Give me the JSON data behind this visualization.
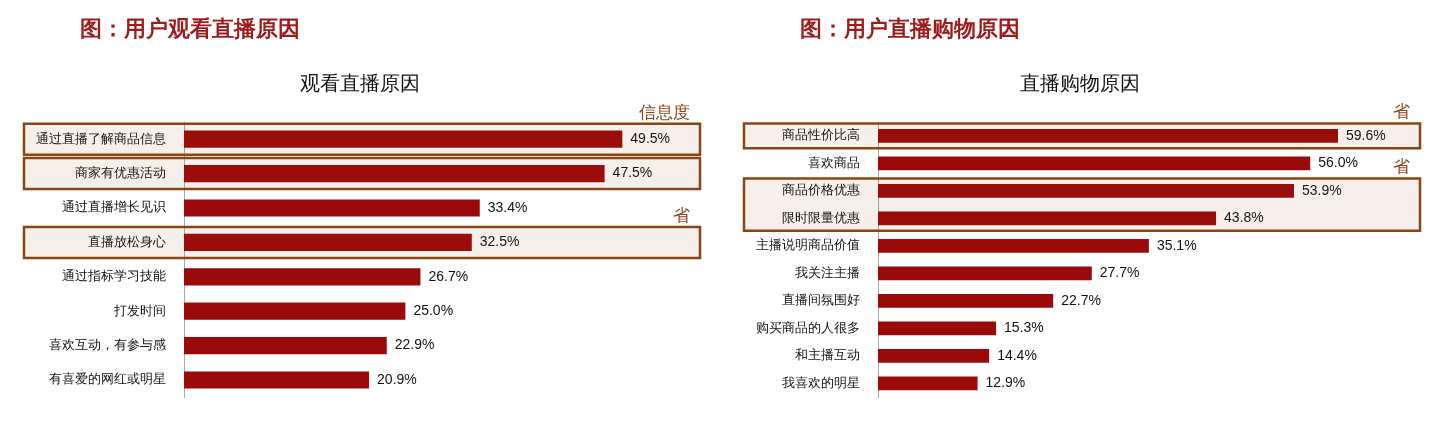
{
  "chart_data": [
    {
      "type": "bar",
      "orientation": "horizontal",
      "title": "图：用户观看直播原因",
      "subtitle": "观看直播原因",
      "categories": [
        "通过直播了解商品信息",
        "商家有优惠活动",
        "通过直播增长见识",
        "直播放松身心",
        "通过指标学习技能",
        "打发时间",
        "喜欢互动，有参与感",
        "有喜爱的网红或明星"
      ],
      "values": [
        49.5,
        47.5,
        33.4,
        32.5,
        26.7,
        25.0,
        22.9,
        20.9
      ],
      "value_labels": [
        "49.5%",
        "47.5%",
        "33.4%",
        "32.5%",
        "26.7%",
        "25.0%",
        "22.9%",
        "20.9%"
      ],
      "color": "#9b0a0a",
      "tick_labels": "y",
      "legend": false,
      "bands": [
        {
          "axis": "y",
          "from": "通过直播了解商品信息",
          "to": "通过直播了解商品信息",
          "label": "信息度",
          "color": "#8b4513"
        },
        {
          "axis": "y",
          "from": "商家有优惠活动",
          "to": "商家有优惠活动",
          "label": null,
          "color": "#8b4513"
        },
        {
          "axis": "y",
          "from": "直播放松身心",
          "to": "直播放松身心",
          "label": "省",
          "color": "#8b4513"
        }
      ]
    },
    {
      "type": "bar",
      "orientation": "horizontal",
      "title": "图：用户直播购物原因",
      "subtitle": "直播购物原因",
      "categories": [
        "商品性价比高",
        "喜欢商品",
        "商品价格优惠",
        "限时限量优惠",
        "主播说明商品价值",
        "我关注主播",
        "直播间氛围好",
        "购买商品的人很多",
        "和主播互动",
        "我喜欢的明星"
      ],
      "values": [
        59.6,
        56.0,
        53.9,
        43.8,
        35.1,
        27.7,
        22.7,
        15.3,
        14.4,
        12.9
      ],
      "value_labels": [
        "59.6%",
        "56.0%",
        "53.9%",
        "43.8%",
        "35.1%",
        "27.7%",
        "22.7%",
        "15.3%",
        "14.4%",
        "12.9%"
      ],
      "color": "#9b0a0a",
      "tick_labels": "y",
      "legend": false,
      "bands": [
        {
          "axis": "y",
          "from": "商品性价比高",
          "to": "商品性价比高",
          "label": "省",
          "color": "#8b4513"
        },
        {
          "axis": "y",
          "from": "商品价格优惠",
          "to": "限时限量优惠",
          "label": "省",
          "color": "#8b4513"
        }
      ]
    }
  ]
}
